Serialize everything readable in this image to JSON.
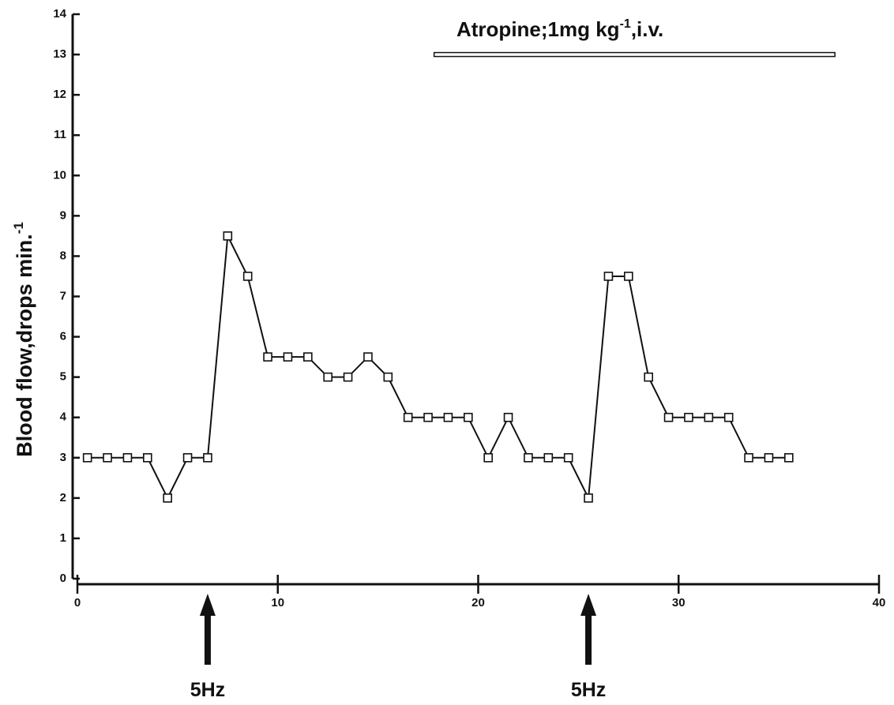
{
  "chart_data": {
    "type": "line",
    "ylabel": {
      "text": "Blood  flow,drops min.",
      "sup": "-1"
    },
    "annotation": {
      "text": "Atropine;1mg kg",
      "sup": "-1",
      "tail": ",i.v."
    },
    "treatment_bar": {
      "x": [
        17.8,
        37.8
      ],
      "y": 13
    },
    "arrows": [
      {
        "x": 6.5,
        "label": "5Hz"
      },
      {
        "x": 25.5,
        "label": "5Hz"
      }
    ],
    "x": [
      0.5,
      1.5,
      2.5,
      3.5,
      4.5,
      5.5,
      6.5,
      7.5,
      8.5,
      9.5,
      10.5,
      11.5,
      12.5,
      13.5,
      14.5,
      15.5,
      16.5,
      17.5,
      18.5,
      19.5,
      20.5,
      21.5,
      22.5,
      23.5,
      24.5,
      25.5,
      26.5,
      27.5,
      28.5,
      29.5,
      30.5,
      31.5,
      32.5,
      33.5,
      34.5,
      35.5
    ],
    "values": [
      3,
      3,
      3,
      3,
      2,
      3,
      3,
      8.5,
      7.5,
      5.5,
      5.5,
      5.5,
      5,
      5,
      5.5,
      5,
      4,
      4,
      4,
      4,
      3,
      4,
      3,
      3,
      3,
      2,
      7.5,
      7.5,
      5,
      4,
      4,
      4,
      4,
      3,
      3,
      3
    ],
    "color": "#111111",
    "xlim": [
      0,
      40
    ],
    "xticks": [
      0,
      10,
      20,
      30,
      40
    ],
    "ylim": [
      0,
      14
    ],
    "yticks": [
      0,
      1,
      2,
      3,
      4,
      5,
      6,
      7,
      8,
      9,
      10,
      11,
      12,
      13,
      14
    ]
  }
}
